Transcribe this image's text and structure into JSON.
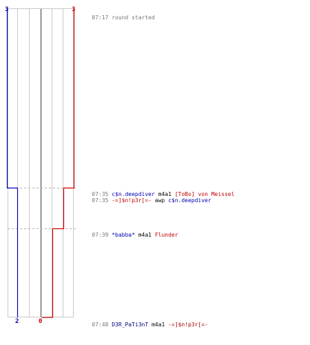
{
  "colors": {
    "blue_team": "#0000b0",
    "red_team": "#d00000",
    "grid": "#c8c8c8",
    "center": "#707070",
    "time_text": "#777777"
  },
  "scores": {
    "blue_start": "3",
    "red_start": "3",
    "blue_end": "2",
    "red_end": "0"
  },
  "events": [
    {
      "time": "07:17",
      "parts": [
        {
          "text": "round started",
          "style": "t-plain"
        }
      ]
    },
    {
      "time": "07:35",
      "parts": [
        {
          "text": "c$n.deepdiver",
          "style": "t-blue"
        },
        {
          "text": " m4a1 ",
          "style": "t-black"
        },
        {
          "text": "[ToBo] von Meissel",
          "style": "t-red"
        }
      ]
    },
    {
      "time": "07:35",
      "parts": [
        {
          "text": "-=]$n!p3r[=-",
          "style": "t-red"
        },
        {
          "text": " awp ",
          "style": "t-black"
        },
        {
          "text": "c$n.deepdiver",
          "style": "t-blue"
        }
      ]
    },
    {
      "time": "07:39",
      "parts": [
        {
          "text": "*babba*",
          "style": "t-blue"
        },
        {
          "text": " m4a1 ",
          "style": "t-black"
        },
        {
          "text": "Flunder",
          "style": "t-red"
        }
      ]
    },
    {
      "time": "07:48",
      "parts": [
        {
          "text": "D3R_PaTi3nT",
          "style": "t-navy"
        },
        {
          "text": " m4a1 ",
          "style": "t-black"
        },
        {
          "text": "-=]$n!p3r[=-",
          "style": "t-darkred"
        }
      ]
    }
  ]
}
